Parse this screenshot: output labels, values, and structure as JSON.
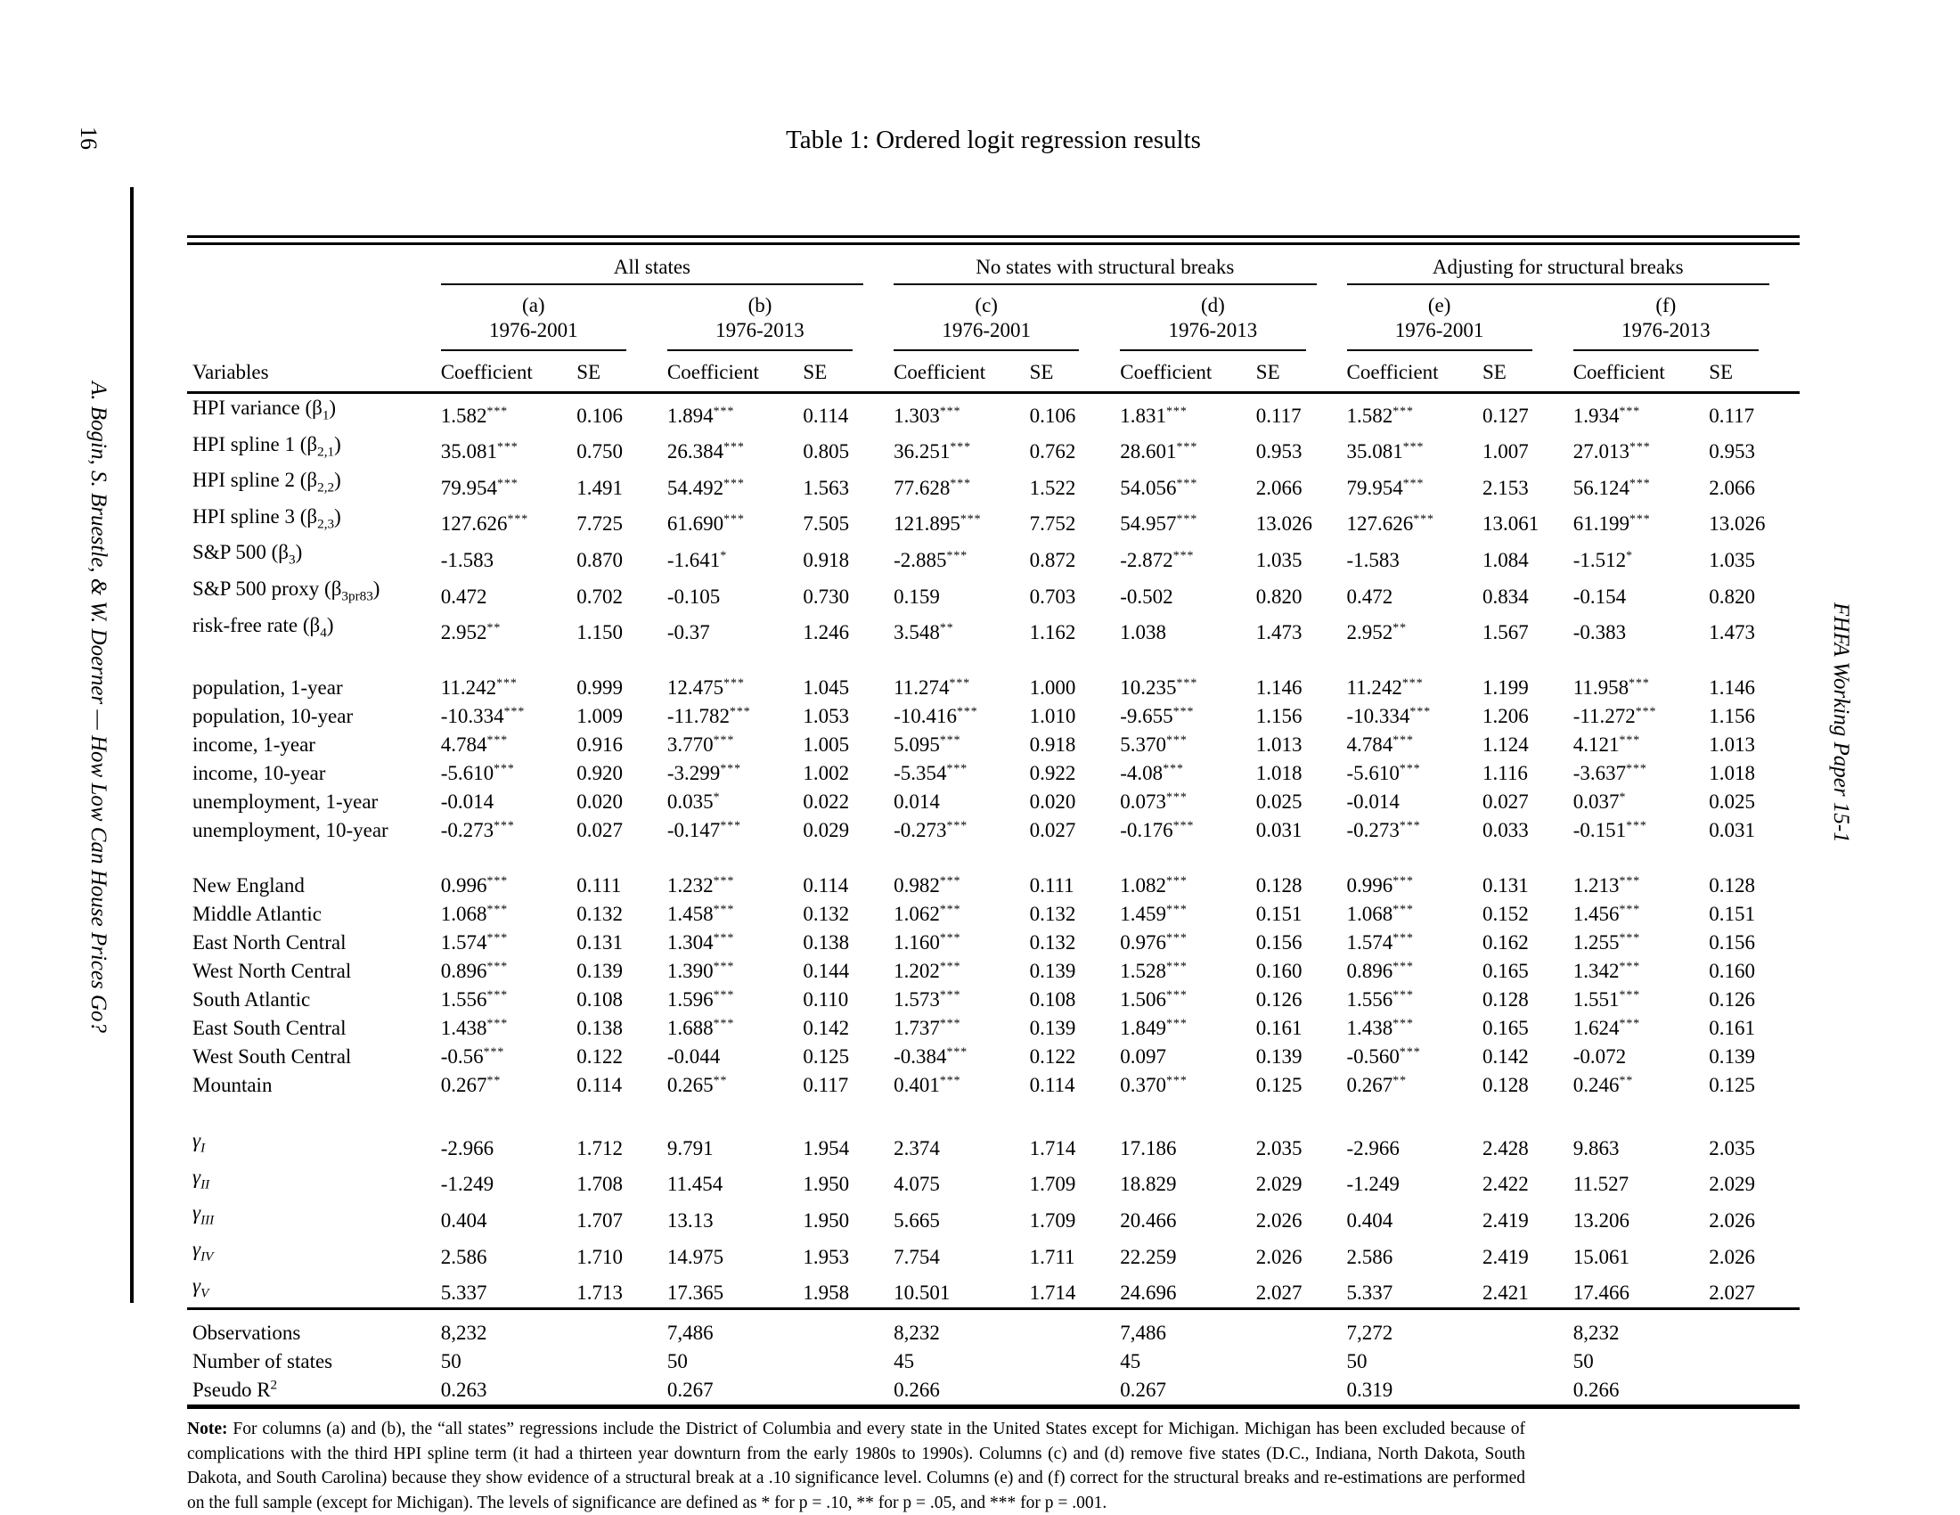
{
  "page": {
    "page_number": "16",
    "left_running_title": "A. Bogin, S. Bruestle, & W. Doerner — How Low Can House Prices Go?",
    "right_running_title": "FHFA Working Paper 15-1"
  },
  "table": {
    "title": "Table 1: Ordered logit regression results",
    "variables_header": "Variables",
    "coef_header": "Coefficient",
    "se_header": "SE",
    "groups": [
      {
        "label": "All states",
        "columns": [
          {
            "id": "(a)",
            "period": "1976-2001"
          },
          {
            "id": "(b)",
            "period": "1976-2013"
          }
        ]
      },
      {
        "label": "No states with structural breaks",
        "columns": [
          {
            "id": "(c)",
            "period": "1976-2001"
          },
          {
            "id": "(d)",
            "period": "1976-2013"
          }
        ]
      },
      {
        "label": "Adjusting for structural breaks",
        "columns": [
          {
            "id": "(e)",
            "period": "1976-2001"
          },
          {
            "id": "(f)",
            "period": "1976-2013"
          }
        ]
      }
    ],
    "sections": [
      {
        "rows": [
          {
            "label": "HPI variance (β_{1})",
            "cells": [
              [
                "1.582***",
                "0.106"
              ],
              [
                "1.894***",
                "0.114"
              ],
              [
                "1.303***",
                "0.106"
              ],
              [
                "1.831***",
                "0.117"
              ],
              [
                "1.582***",
                "0.127"
              ],
              [
                "1.934***",
                "0.117"
              ]
            ]
          },
          {
            "label": "HPI spline 1 (β_{2,1})",
            "bold": true,
            "cells": [
              [
                "35.081***",
                "0.750"
              ],
              [
                "26.384***",
                "0.805"
              ],
              [
                "36.251***",
                "0.762"
              ],
              [
                "28.601***",
                "0.953"
              ],
              [
                "35.081***",
                "1.007"
              ],
              [
                "27.013***",
                "0.953"
              ]
            ]
          },
          {
            "label": "HPI spline 2 (β_{2,2})",
            "bold": true,
            "cells": [
              [
                "79.954***",
                "1.491"
              ],
              [
                "54.492***",
                "1.563"
              ],
              [
                "77.628***",
                "1.522"
              ],
              [
                "54.056***",
                "2.066"
              ],
              [
                "79.954***",
                "2.153"
              ],
              [
                "56.124***",
                "2.066"
              ]
            ]
          },
          {
            "label": "HPI spline 3 (β_{2,3})",
            "bold": true,
            "cells": [
              [
                "127.626***",
                "7.725"
              ],
              [
                "61.690***",
                "7.505"
              ],
              [
                "121.895***",
                "7.752"
              ],
              [
                "54.957***",
                "13.026"
              ],
              [
                "127.626***",
                "13.061"
              ],
              [
                "61.199***",
                "13.026"
              ]
            ]
          },
          {
            "label": "S&P 500 (β_{3})",
            "cells": [
              [
                "-1.583",
                "0.870"
              ],
              [
                "-1.641*",
                "0.918"
              ],
              [
                "-2.885***",
                "0.872"
              ],
              [
                "-2.872***",
                "1.035"
              ],
              [
                "-1.583",
                "1.084"
              ],
              [
                "-1.512*",
                "1.035"
              ]
            ]
          },
          {
            "label": "S&P 500 proxy (β_{3pr83})",
            "cells": [
              [
                "0.472",
                "0.702"
              ],
              [
                "-0.105",
                "0.730"
              ],
              [
                "0.159",
                "0.703"
              ],
              [
                "-0.502",
                "0.820"
              ],
              [
                "0.472",
                "0.834"
              ],
              [
                "-0.154",
                "0.820"
              ]
            ]
          },
          {
            "label": "risk-free rate (β_{4})",
            "cells": [
              [
                "2.952**",
                "1.150"
              ],
              [
                "-0.37",
                "1.246"
              ],
              [
                "3.548**",
                "1.162"
              ],
              [
                "1.038",
                "1.473"
              ],
              [
                "2.952**",
                "1.567"
              ],
              [
                "-0.383",
                "1.473"
              ]
            ]
          }
        ]
      },
      {
        "rows": [
          {
            "label": "population, 1-year",
            "cells": [
              [
                "11.242***",
                "0.999"
              ],
              [
                "12.475***",
                "1.045"
              ],
              [
                "11.274***",
                "1.000"
              ],
              [
                "10.235***",
                "1.146"
              ],
              [
                "11.242***",
                "1.199"
              ],
              [
                "11.958***",
                "1.146"
              ]
            ]
          },
          {
            "label": "population, 10-year",
            "cells": [
              [
                "-10.334***",
                "1.009"
              ],
              [
                "-11.782***",
                "1.053"
              ],
              [
                "-10.416***",
                "1.010"
              ],
              [
                "-9.655***",
                "1.156"
              ],
              [
                "-10.334***",
                "1.206"
              ],
              [
                "-11.272***",
                "1.156"
              ]
            ]
          },
          {
            "label": "income, 1-year",
            "cells": [
              [
                "4.784***",
                "0.916"
              ],
              [
                "3.770***",
                "1.005"
              ],
              [
                "5.095***",
                "0.918"
              ],
              [
                "5.370***",
                "1.013"
              ],
              [
                "4.784***",
                "1.124"
              ],
              [
                "4.121***",
                "1.013"
              ]
            ]
          },
          {
            "label": "income, 10-year",
            "cells": [
              [
                "-5.610***",
                "0.920"
              ],
              [
                "-3.299***",
                "1.002"
              ],
              [
                "-5.354***",
                "0.922"
              ],
              [
                "-4.08***",
                "1.018"
              ],
              [
                "-5.610***",
                "1.116"
              ],
              [
                "-3.637***",
                "1.018"
              ]
            ]
          },
          {
            "label": "unemployment, 1-year",
            "cells": [
              [
                "-0.014",
                "0.020"
              ],
              [
                "0.035*",
                "0.022"
              ],
              [
                "0.014",
                "0.020"
              ],
              [
                "0.073***",
                "0.025"
              ],
              [
                "-0.014",
                "0.027"
              ],
              [
                "0.037*",
                "0.025"
              ]
            ]
          },
          {
            "label": "unemployment, 10-year",
            "cells": [
              [
                "-0.273***",
                "0.027"
              ],
              [
                "-0.147***",
                "0.029"
              ],
              [
                "-0.273***",
                "0.027"
              ],
              [
                "-0.176***",
                "0.031"
              ],
              [
                "-0.273***",
                "0.033"
              ],
              [
                "-0.151***",
                "0.031"
              ]
            ]
          }
        ]
      },
      {
        "rows": [
          {
            "label": "New England",
            "cells": [
              [
                "0.996***",
                "0.111"
              ],
              [
                "1.232***",
                "0.114"
              ],
              [
                "0.982***",
                "0.111"
              ],
              [
                "1.082***",
                "0.128"
              ],
              [
                "0.996***",
                "0.131"
              ],
              [
                "1.213***",
                "0.128"
              ]
            ]
          },
          {
            "label": "Middle Atlantic",
            "cells": [
              [
                "1.068***",
                "0.132"
              ],
              [
                "1.458***",
                "0.132"
              ],
              [
                "1.062***",
                "0.132"
              ],
              [
                "1.459***",
                "0.151"
              ],
              [
                "1.068***",
                "0.152"
              ],
              [
                "1.456***",
                "0.151"
              ]
            ]
          },
          {
            "label": "East North Central",
            "cells": [
              [
                "1.574***",
                "0.131"
              ],
              [
                "1.304***",
                "0.138"
              ],
              [
                "1.160***",
                "0.132"
              ],
              [
                "0.976***",
                "0.156"
              ],
              [
                "1.574***",
                "0.162"
              ],
              [
                "1.255***",
                "0.156"
              ]
            ]
          },
          {
            "label": "West North Central",
            "cells": [
              [
                "0.896***",
                "0.139"
              ],
              [
                "1.390***",
                "0.144"
              ],
              [
                "1.202***",
                "0.139"
              ],
              [
                "1.528***",
                "0.160"
              ],
              [
                "0.896***",
                "0.165"
              ],
              [
                "1.342***",
                "0.160"
              ]
            ]
          },
          {
            "label": "South Atlantic",
            "cells": [
              [
                "1.556***",
                "0.108"
              ],
              [
                "1.596***",
                "0.110"
              ],
              [
                "1.573***",
                "0.108"
              ],
              [
                "1.506***",
                "0.126"
              ],
              [
                "1.556***",
                "0.128"
              ],
              [
                "1.551***",
                "0.126"
              ]
            ]
          },
          {
            "label": "East South Central",
            "cells": [
              [
                "1.438***",
                "0.138"
              ],
              [
                "1.688***",
                "0.142"
              ],
              [
                "1.737***",
                "0.139"
              ],
              [
                "1.849***",
                "0.161"
              ],
              [
                "1.438***",
                "0.165"
              ],
              [
                "1.624***",
                "0.161"
              ]
            ]
          },
          {
            "label": "West South Central",
            "cells": [
              [
                "-0.56***",
                "0.122"
              ],
              [
                "-0.044",
                "0.125"
              ],
              [
                "-0.384***",
                "0.122"
              ],
              [
                "0.097",
                "0.139"
              ],
              [
                "-0.560***",
                "0.142"
              ],
              [
                "-0.072",
                "0.139"
              ]
            ]
          },
          {
            "label": "Mountain",
            "cells": [
              [
                "0.267**",
                "0.114"
              ],
              [
                "0.265**",
                "0.117"
              ],
              [
                "0.401***",
                "0.114"
              ],
              [
                "0.370***",
                "0.125"
              ],
              [
                "0.267**",
                "0.128"
              ],
              [
                "0.246**",
                "0.125"
              ]
            ]
          }
        ]
      },
      {
        "rows": [
          {
            "label": "γ_{I}",
            "italic_label": true,
            "cells": [
              [
                "-2.966",
                "1.712"
              ],
              [
                "9.791",
                "1.954"
              ],
              [
                "2.374",
                "1.714"
              ],
              [
                "17.186",
                "2.035"
              ],
              [
                "-2.966",
                "2.428"
              ],
              [
                "9.863",
                "2.035"
              ]
            ]
          },
          {
            "label": "γ_{II}",
            "italic_label": true,
            "cells": [
              [
                "-1.249",
                "1.708"
              ],
              [
                "11.454",
                "1.950"
              ],
              [
                "4.075",
                "1.709"
              ],
              [
                "18.829",
                "2.029"
              ],
              [
                "-1.249",
                "2.422"
              ],
              [
                "11.527",
                "2.029"
              ]
            ]
          },
          {
            "label": "γ_{III}",
            "italic_label": true,
            "cells": [
              [
                "0.404",
                "1.707"
              ],
              [
                "13.13",
                "1.950"
              ],
              [
                "5.665",
                "1.709"
              ],
              [
                "20.466",
                "2.026"
              ],
              [
                "0.404",
                "2.419"
              ],
              [
                "13.206",
                "2.026"
              ]
            ]
          },
          {
            "label": "γ_{IV}",
            "italic_label": true,
            "cells": [
              [
                "2.586",
                "1.710"
              ],
              [
                "14.975",
                "1.953"
              ],
              [
                "7.754",
                "1.711"
              ],
              [
                "22.259",
                "2.026"
              ],
              [
                "2.586",
                "2.419"
              ],
              [
                "15.061",
                "2.026"
              ]
            ]
          },
          {
            "label": "γ_{V}",
            "italic_label": true,
            "cells": [
              [
                "5.337",
                "1.713"
              ],
              [
                "17.365",
                "1.958"
              ],
              [
                "10.501",
                "1.714"
              ],
              [
                "24.696",
                "2.027"
              ],
              [
                "5.337",
                "2.421"
              ],
              [
                "17.466",
                "2.027"
              ]
            ]
          }
        ]
      }
    ],
    "summary_rows": [
      {
        "label": "Observations",
        "values": [
          "8,232",
          "7,486",
          "8,232",
          "7,486",
          "7,272",
          "8,232"
        ]
      },
      {
        "label": "Number of states",
        "values": [
          "50",
          "50",
          "45",
          "45",
          "50",
          "50"
        ]
      },
      {
        "label": "Pseudo R^{2}",
        "values": [
          "0.263",
          "0.267",
          "0.266",
          "0.267",
          "0.319",
          "0.266"
        ]
      }
    ],
    "note": {
      "label": "Note:",
      "text": "For columns (a) and (b), the “all states” regressions include the District of Columbia and every state in the United States except for Michigan. Michigan has been excluded because of complications with the third HPI spline term (it had a thirteen year downturn from the early 1980s to 1990s). Columns (c) and (d) remove five states (D.C., Indiana, North Dakota, South Dakota, and South Carolina) because they show evidence of a structural break at a .10 significance level. Columns (e) and (f) correct for the structural breaks and re-estimations are performed on the full sample (except for Michigan). The levels of significance are defined as * for p = .10, ** for p = .05, and *** for p = .001."
    }
  }
}
